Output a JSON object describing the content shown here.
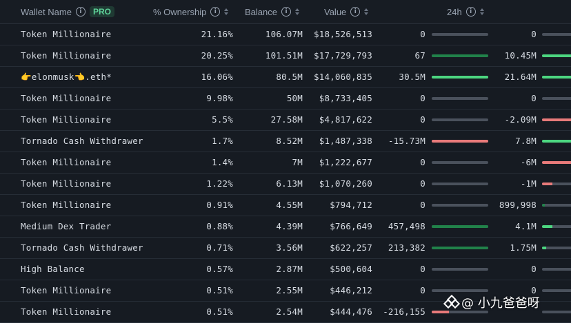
{
  "header": {
    "wallet_name": "Wallet Name",
    "pro_badge": "PRO",
    "ownership": "% Ownership",
    "balance": "Balance",
    "value": "Value",
    "change_24h": "24h"
  },
  "colors": {
    "positive": "#4cd680",
    "positive_dark": "#21824a",
    "negative": "#e87a7a",
    "neutral": "#4a515c"
  },
  "rows": [
    {
      "name": "Token Millionaire",
      "ownership": "21.16%",
      "balance": "106.07M",
      "value": "$18,526,513",
      "change": "0",
      "change_fill": 0,
      "change_sign": "neutral",
      "change2": "0",
      "change2_fill": 0,
      "change2_sign": "neutral"
    },
    {
      "name": "Token Millionaire",
      "ownership": "20.25%",
      "balance": "101.51M",
      "value": "$17,729,793",
      "change": "67",
      "change_fill": 1,
      "change_sign": "positive_dark",
      "change2": "10.45M",
      "change2_fill": 1,
      "change2_sign": "positive"
    },
    {
      "name": "👉elonmusk👈.eth*",
      "ownership": "16.06%",
      "balance": "80.5M",
      "value": "$14,060,835",
      "change": "30.5M",
      "change_fill": 1,
      "change_sign": "positive",
      "change2": "21.64M",
      "change2_fill": 1,
      "change2_sign": "positive"
    },
    {
      "name": "Token Millionaire",
      "ownership": "9.98%",
      "balance": "50M",
      "value": "$8,733,405",
      "change": "0",
      "change_fill": 0,
      "change_sign": "neutral",
      "change2": "0",
      "change2_fill": 0,
      "change2_sign": "neutral"
    },
    {
      "name": "Token Millionaire",
      "ownership": "5.5%",
      "balance": "27.58M",
      "value": "$4,817,622",
      "change": "0",
      "change_fill": 0,
      "change_sign": "neutral",
      "change2": "-2.09M",
      "change2_fill": 1,
      "change2_sign": "negative"
    },
    {
      "name": "Tornado Cash Withdrawer",
      "ownership": "1.7%",
      "balance": "8.52M",
      "value": "$1,487,338",
      "change": "-15.73M",
      "change_fill": 1,
      "change_sign": "negative",
      "change2": "7.8M",
      "change2_fill": 1,
      "change2_sign": "positive"
    },
    {
      "name": "Token Millionaire",
      "ownership": "1.4%",
      "balance": "7M",
      "value": "$1,222,677",
      "change": "0",
      "change_fill": 0,
      "change_sign": "neutral",
      "change2": "-6M",
      "change2_fill": 1,
      "change2_sign": "negative"
    },
    {
      "name": "Token Millionaire",
      "ownership": "1.22%",
      "balance": "6.13M",
      "value": "$1,070,260",
      "change": "0",
      "change_fill": 0,
      "change_sign": "neutral",
      "change2": "-1M",
      "change2_fill": 0.35,
      "change2_sign": "negative"
    },
    {
      "name": "Token Millionaire",
      "ownership": "0.91%",
      "balance": "4.55M",
      "value": "$794,712",
      "change": "0",
      "change_fill": 0,
      "change_sign": "neutral",
      "change2": "899,998",
      "change2_fill": 0.1,
      "change2_sign": "positive_dark"
    },
    {
      "name": "Medium Dex Trader",
      "ownership": "0.88%",
      "balance": "4.39M",
      "value": "$766,649",
      "change": "457,498",
      "change_fill": 1,
      "change_sign": "positive_dark",
      "change2": "4.1M",
      "change2_fill": 0.35,
      "change2_sign": "positive"
    },
    {
      "name": "Tornado Cash Withdrawer",
      "ownership": "0.71%",
      "balance": "3.56M",
      "value": "$622,257",
      "change": "213,382",
      "change_fill": 1,
      "change_sign": "positive_dark",
      "change2": "1.75M",
      "change2_fill": 0.15,
      "change2_sign": "positive"
    },
    {
      "name": "High Balance",
      "ownership": "0.57%",
      "balance": "2.87M",
      "value": "$500,604",
      "change": "0",
      "change_fill": 0,
      "change_sign": "neutral",
      "change2": "0",
      "change2_fill": 0,
      "change2_sign": "neutral"
    },
    {
      "name": "Token Millionaire",
      "ownership": "0.51%",
      "balance": "2.55M",
      "value": "$446,212",
      "change": "0",
      "change_fill": 0,
      "change_sign": "neutral",
      "change2": "0",
      "change2_fill": 0,
      "change2_sign": "neutral"
    },
    {
      "name": "Token Millionaire",
      "ownership": "0.51%",
      "balance": "2.54M",
      "value": "$444,476",
      "change": "-216,155",
      "change_fill": 0.3,
      "change_sign": "negative",
      "change2": "",
      "change2_fill": 0,
      "change2_sign": "neutral"
    }
  ],
  "watermark": {
    "text": "@ 小九爸爸呀"
  }
}
